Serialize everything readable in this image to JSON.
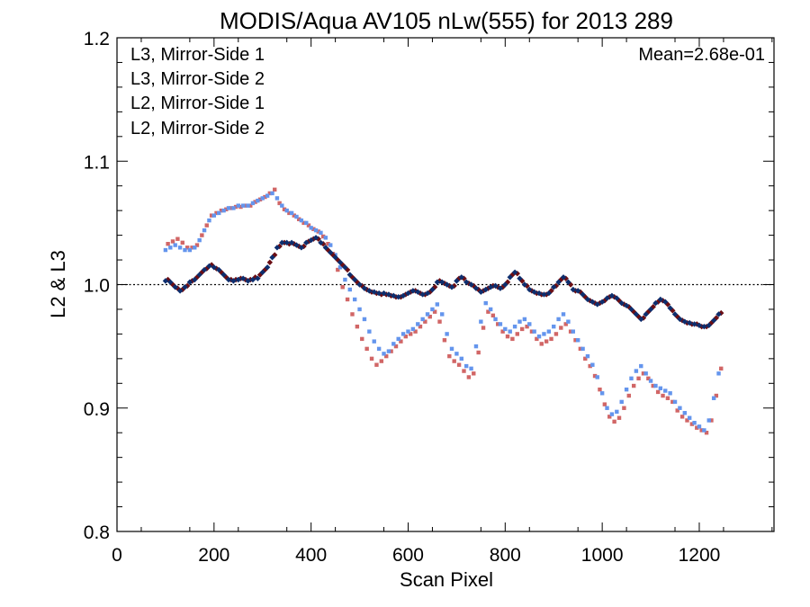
{
  "chart_data": {
    "type": "scatter",
    "title": "MODIS/Aqua AV105 nLw(555) for 2013 289",
    "xlabel": "Scan Pixel",
    "ylabel": "L2 & L3",
    "xlim": [
      0,
      1354
    ],
    "ylim": [
      0.8,
      1.2
    ],
    "x_ticks": [
      0,
      200,
      400,
      600,
      800,
      1000,
      1200
    ],
    "x_tick_labels": [
      "0",
      "200",
      "400",
      "600",
      "800",
      "1000",
      "1200"
    ],
    "y_ticks": [
      0.8,
      0.9,
      1.0,
      1.1,
      1.2
    ],
    "y_tick_labels": [
      "0.8",
      "0.9",
      "1.0",
      "1.1",
      "1.2"
    ],
    "reference_line": 1.0,
    "annotation": "Mean=2.68e-01",
    "annotation_color": "#d16666",
    "legend_position": "top-left",
    "x_step": 10,
    "series": [
      {
        "name": "L3, Mirror-Side 1",
        "color": "#0d2e6e",
        "marker": "diamond",
        "x_start": 100,
        "values": [
          1.003,
          1.002,
          0.998,
          0.995,
          0.998,
          1.002,
          1.004,
          1.008,
          1.012,
          1.015,
          1.014,
          1.012,
          1.008,
          1.004,
          1.003,
          1.004,
          1.005,
          1.003,
          1.004,
          1.005,
          1.01,
          1.014,
          1.022,
          1.03,
          1.034,
          1.034,
          1.034,
          1.032,
          1.03,
          1.034,
          1.036,
          1.038,
          1.034,
          1.03,
          1.026,
          1.022,
          1.018,
          1.014,
          1.008,
          1.004,
          1.0,
          0.997,
          0.995,
          0.994,
          0.993,
          0.993,
          0.992,
          0.991,
          0.99,
          0.991,
          0.993,
          0.995,
          0.994,
          0.992,
          0.993,
          0.996,
          1.002,
          1.002,
          1.0,
          0.998,
          1.003,
          1.006,
          1.002,
          1.0,
          0.997,
          0.994,
          0.996,
          0.998,
          0.999,
          0.997,
          1.0,
          1.006,
          1.01,
          1.005,
          1.0,
          0.996,
          0.994,
          0.993,
          0.992,
          0.993,
          0.998,
          1.002,
          1.006,
          1.002,
          0.996,
          0.995,
          0.992,
          0.988,
          0.986,
          0.984,
          0.986,
          0.989,
          0.991,
          0.989,
          0.985,
          0.983,
          0.98,
          0.976,
          0.972,
          0.976,
          0.98,
          0.985,
          0.988,
          0.986,
          0.981,
          0.976,
          0.972,
          0.97,
          0.969,
          0.968,
          0.967,
          0.966,
          0.967,
          0.971,
          0.976
        ]
      },
      {
        "name": "L3, Mirror-Side 2",
        "color": "#6b0e14",
        "marker": "diamond",
        "x_start": 105,
        "values": [
          1.004,
          1.0,
          0.997,
          0.996,
          0.999,
          1.003,
          1.006,
          1.01,
          1.013,
          1.016,
          1.013,
          1.01,
          1.006,
          1.004,
          1.004,
          1.005,
          1.004,
          1.004,
          1.006,
          1.008,
          1.012,
          1.018,
          1.024,
          1.031,
          1.034,
          1.033,
          1.033,
          1.031,
          1.031,
          1.035,
          1.037,
          1.037,
          1.033,
          1.028,
          1.024,
          1.02,
          1.016,
          1.012,
          1.006,
          1.002,
          0.999,
          0.996,
          0.994,
          0.993,
          0.992,
          0.992,
          0.991,
          0.99,
          0.99,
          0.992,
          0.994,
          0.995,
          0.993,
          0.992,
          0.994,
          0.998,
          1.003,
          1.001,
          0.999,
          0.999,
          1.005,
          1.005,
          1.001,
          0.999,
          0.996,
          0.995,
          0.997,
          0.999,
          0.998,
          0.998,
          1.002,
          1.008,
          1.009,
          1.003,
          0.999,
          0.995,
          0.993,
          0.992,
          0.992,
          0.995,
          0.999,
          1.004,
          1.005,
          1.0,
          0.995,
          0.994,
          0.99,
          0.987,
          0.985,
          0.985,
          0.987,
          0.99,
          0.99,
          0.987,
          0.984,
          0.982,
          0.978,
          0.974,
          0.973,
          0.978,
          0.982,
          0.986,
          0.987,
          0.984,
          0.979,
          0.974,
          0.971,
          0.969,
          0.968,
          0.968,
          0.966,
          0.966,
          0.969,
          0.973,
          0.977
        ]
      },
      {
        "name": "L2, Mirror-Side 1",
        "color": "#6495ed",
        "marker": "square",
        "x_start": 100,
        "values": [
          1.028,
          1.03,
          1.032,
          1.03,
          1.028,
          1.028,
          1.03,
          1.036,
          1.044,
          1.052,
          1.056,
          1.058,
          1.06,
          1.062,
          1.062,
          1.064,
          1.064,
          1.064,
          1.066,
          1.068,
          1.07,
          1.072,
          1.074,
          1.07,
          1.064,
          1.06,
          1.058,
          1.055,
          1.052,
          1.05,
          1.046,
          1.044,
          1.042,
          1.038,
          1.032,
          1.024,
          1.014,
          1.004,
          0.996,
          0.988,
          0.98,
          0.972,
          0.962,
          0.954,
          0.948,
          0.944,
          0.946,
          0.952,
          0.956,
          0.96,
          0.962,
          0.964,
          0.968,
          0.972,
          0.976,
          0.98,
          0.984,
          0.976,
          0.96,
          0.948,
          0.944,
          0.94,
          0.934,
          0.932,
          0.95,
          0.97,
          0.985,
          0.98,
          0.972,
          0.968,
          0.964,
          0.962,
          0.966,
          0.97,
          0.972,
          0.968,
          0.962,
          0.958,
          0.96,
          0.962,
          0.966,
          0.972,
          0.976,
          0.97,
          0.962,
          0.955,
          0.948,
          0.942,
          0.935,
          0.925,
          0.912,
          0.9,
          0.895,
          0.897,
          0.905,
          0.915,
          0.924,
          0.93,
          0.934,
          0.928,
          0.922,
          0.918,
          0.916,
          0.914,
          0.912,
          0.905,
          0.9,
          0.896,
          0.892,
          0.888,
          0.885,
          0.882,
          0.89,
          0.908,
          0.928
        ]
      },
      {
        "name": "L2, Mirror-Side 2",
        "color": "#d16666",
        "marker": "square",
        "x_start": 105,
        "values": [
          1.033,
          1.035,
          1.037,
          1.034,
          1.03,
          1.03,
          1.032,
          1.04,
          1.048,
          1.056,
          1.058,
          1.06,
          1.061,
          1.062,
          1.063,
          1.063,
          1.064,
          1.064,
          1.067,
          1.069,
          1.071,
          1.074,
          1.077,
          1.066,
          1.061,
          1.058,
          1.056,
          1.053,
          1.05,
          1.048,
          1.045,
          1.043,
          1.039,
          1.033,
          1.025,
          1.012,
          0.998,
          0.988,
          0.976,
          0.966,
          0.956,
          0.948,
          0.94,
          0.935,
          0.938,
          0.942,
          0.946,
          0.95,
          0.954,
          0.958,
          0.96,
          0.962,
          0.966,
          0.97,
          0.974,
          0.978,
          0.97,
          0.955,
          0.942,
          0.938,
          0.935,
          0.93,
          0.925,
          0.928,
          0.945,
          0.965,
          0.978,
          0.975,
          0.968,
          0.962,
          0.958,
          0.956,
          0.96,
          0.964,
          0.966,
          0.962,
          0.956,
          0.952,
          0.954,
          0.956,
          0.96,
          0.965,
          0.968,
          0.962,
          0.955,
          0.948,
          0.94,
          0.934,
          0.926,
          0.915,
          0.903,
          0.893,
          0.889,
          0.892,
          0.9,
          0.91,
          0.918,
          0.924,
          0.928,
          0.924,
          0.918,
          0.913,
          0.91,
          0.908,
          0.905,
          0.898,
          0.893,
          0.89,
          0.887,
          0.884,
          0.882,
          0.88,
          0.89,
          0.91,
          0.932
        ]
      }
    ]
  }
}
